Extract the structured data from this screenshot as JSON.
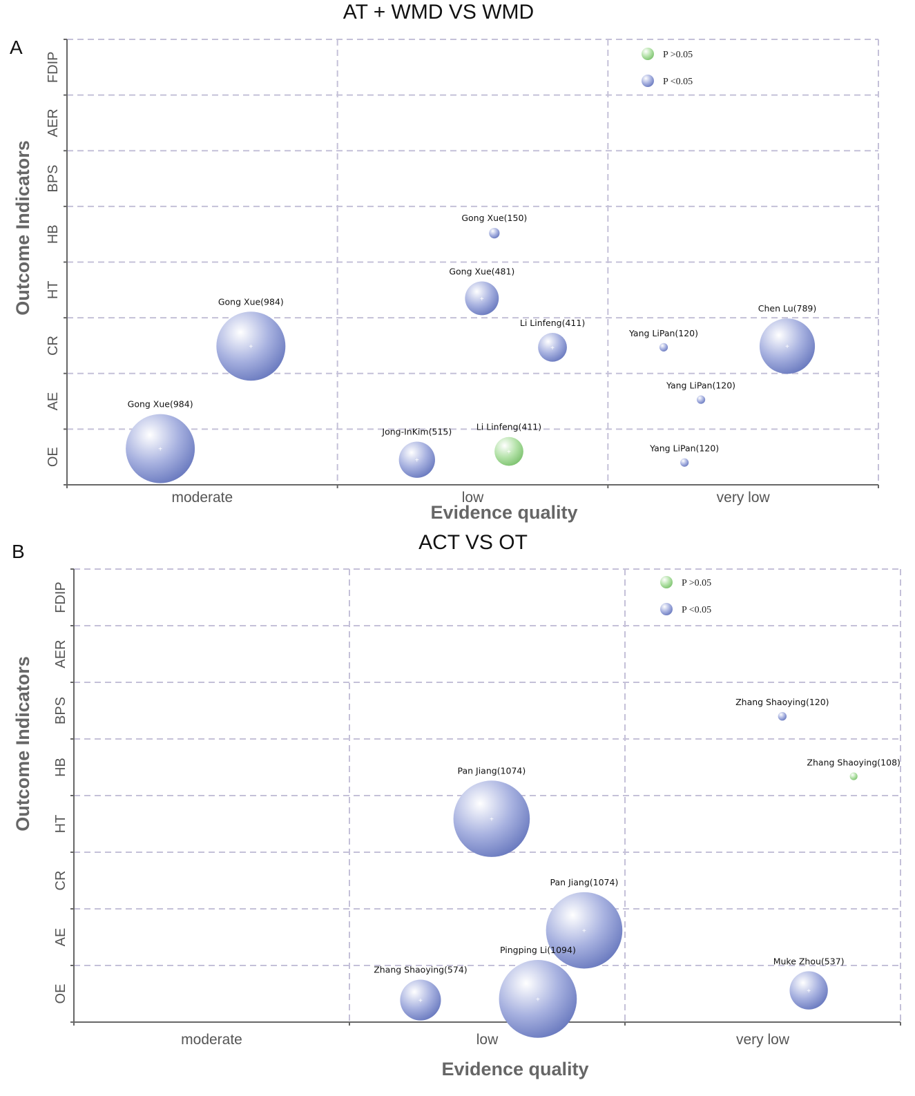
{
  "colors": {
    "significant": "#7080c4",
    "nonsignificant": "#8ccc7e",
    "grid": "#c4c0d8",
    "axis": "#666666"
  },
  "chart_data": [
    {
      "type": "scatter",
      "panel_label": "A",
      "title": "AT + WMD VS WMD",
      "xlabel": "Evidence quality",
      "ylabel": "Outcome Indicators",
      "x_categories": [
        "moderate",
        "low",
        "very low"
      ],
      "y_categories": [
        "OE",
        "AE",
        "CR",
        "HT",
        "HB",
        "BPS",
        "AER",
        "FDIP"
      ],
      "xlim": [
        0,
        3
      ],
      "ylim": [
        0,
        8
      ],
      "grid": true,
      "legend": {
        "position": "top-right",
        "items": [
          {
            "label": "P >0.05",
            "group": "nonsignificant"
          },
          {
            "label": "P <0.05",
            "group": "significant"
          }
        ]
      },
      "points": [
        {
          "label": "Gong Xue(984)",
          "n": 984,
          "x": 0.68,
          "y": 2.49,
          "group": "significant"
        },
        {
          "label": "Gong Xue(984)",
          "n": 984,
          "x": 0.345,
          "y": 0.65,
          "group": "significant"
        },
        {
          "label": "Gong Xue(150)",
          "n": 150,
          "x": 1.58,
          "y": 4.52,
          "group": "significant"
        },
        {
          "label": "Gong Xue(481)",
          "n": 481,
          "x": 1.534,
          "y": 3.35,
          "group": "significant"
        },
        {
          "label": "Li Linfeng(411)",
          "n": 411,
          "x": 1.795,
          "y": 2.47,
          "group": "significant"
        },
        {
          "label": "Jong-InKim(515)",
          "n": 515,
          "x": 1.294,
          "y": 0.45,
          "group": "significant"
        },
        {
          "label": "Li Linfeng(411)",
          "n": 411,
          "x": 1.634,
          "y": 0.6,
          "group": "nonsignificant"
        },
        {
          "label": "Yang LiPan(120)",
          "n": 120,
          "x": 2.206,
          "y": 2.47,
          "group": "significant"
        },
        {
          "label": "Chen Lu(789)",
          "n": 789,
          "x": 2.663,
          "y": 2.49,
          "group": "significant"
        },
        {
          "label": "Yang LiPan(120)",
          "n": 120,
          "x": 2.344,
          "y": 1.53,
          "group": "significant"
        },
        {
          "label": "Yang LiPan(120)",
          "n": 120,
          "x": 2.283,
          "y": 0.4,
          "group": "significant"
        }
      ]
    },
    {
      "type": "scatter",
      "panel_label": "B",
      "title": "ACT VS OT",
      "xlabel": "Evidence quality",
      "ylabel": "Outcome Indicators",
      "x_categories": [
        "moderate",
        "low",
        "very low"
      ],
      "y_categories": [
        "OE",
        "AE",
        "CR",
        "HT",
        "HB",
        "BPS",
        "AER",
        "FDIP"
      ],
      "xlim": [
        0,
        3
      ],
      "ylim": [
        0,
        8
      ],
      "grid": true,
      "legend": {
        "position": "top-right",
        "items": [
          {
            "label": "P >0.05",
            "group": "nonsignificant"
          },
          {
            "label": "P <0.05",
            "group": "significant"
          }
        ]
      },
      "points": [
        {
          "label": "Pan Jiang(1074)",
          "n": 1074,
          "x": 1.516,
          "y": 3.59,
          "group": "significant"
        },
        {
          "label": "Pan Jiang(1074)",
          "n": 1074,
          "x": 1.852,
          "y": 1.62,
          "group": "significant"
        },
        {
          "label": "Pingping Li(1094)",
          "n": 1094,
          "x": 1.684,
          "y": 0.41,
          "group": "significant"
        },
        {
          "label": "Zhang Shaoying(574)",
          "n": 574,
          "x": 1.258,
          "y": 0.39,
          "group": "significant"
        },
        {
          "label": "Zhang Shaoying(120)",
          "n": 120,
          "x": 2.571,
          "y": 5.4,
          "group": "significant"
        },
        {
          "label": "Zhang Shaoying(108)",
          "n": 108,
          "x": 2.83,
          "y": 4.34,
          "group": "nonsignificant"
        },
        {
          "label": "Muke Zhou(537)",
          "n": 537,
          "x": 2.667,
          "y": 0.56,
          "group": "significant"
        }
      ]
    }
  ]
}
